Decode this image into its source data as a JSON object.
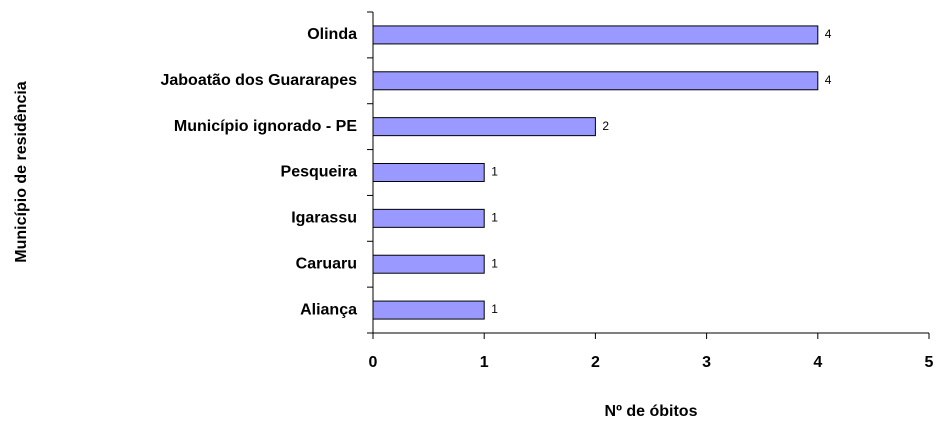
{
  "chart_data": {
    "type": "bar",
    "categories": [
      "Olinda",
      "Jaboatão dos Guararapes",
      "Município ignorado - PE",
      "Pesqueira",
      "Igarassu",
      "Caruaru",
      "Aliança"
    ],
    "values": [
      4,
      4,
      2,
      1,
      1,
      1,
      1
    ],
    "color": "#9999ff",
    "xlim": [
      0,
      5
    ],
    "xticks": [
      0,
      1,
      2,
      3,
      4,
      5
    ],
    "x_label": "Nº de óbitos",
    "y_label": "Município de residência"
  }
}
